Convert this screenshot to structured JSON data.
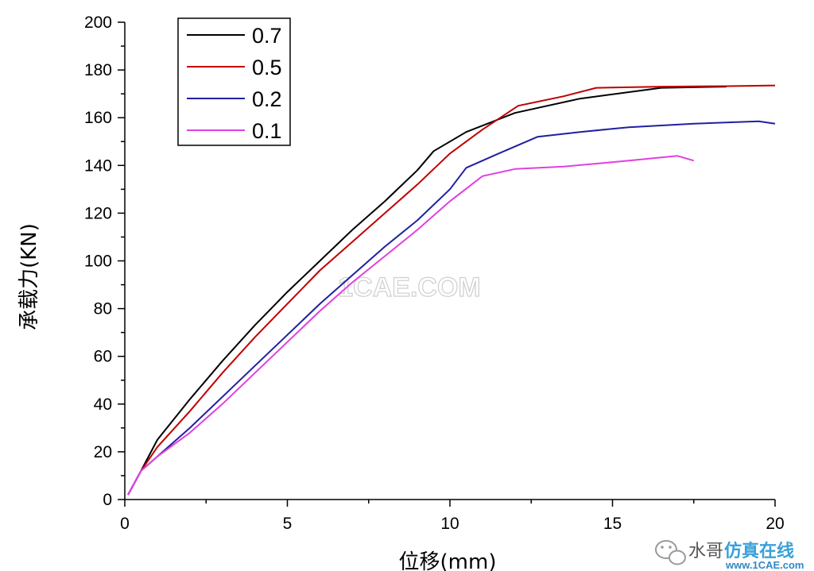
{
  "chart_data": {
    "type": "line",
    "title": "",
    "xlabel": "位移(mm)",
    "ylabel": "承载力(KN)",
    "xlim": [
      0,
      20
    ],
    "ylim": [
      0,
      200
    ],
    "xticks": [
      0,
      5,
      10,
      15,
      20
    ],
    "yticks": [
      0,
      20,
      40,
      60,
      80,
      100,
      120,
      140,
      160,
      180,
      200
    ],
    "grid": false,
    "legend_position": "top-left",
    "series": [
      {
        "name": "0.7",
        "color": "#000000",
        "x": [
          0.1,
          0.5,
          1.0,
          2.0,
          3.0,
          4.0,
          5.0,
          6.0,
          7.0,
          8.0,
          9.0,
          9.5,
          10.5,
          12.0,
          14.0,
          16.5,
          18.5
        ],
        "y": [
          2,
          12,
          25,
          42,
          58,
          73,
          87,
          100,
          113,
          125,
          138,
          146,
          154,
          162,
          168,
          172.5,
          173
        ]
      },
      {
        "name": "0.5",
        "color": "#c00000",
        "x": [
          0.1,
          0.5,
          1.0,
          2.0,
          3.0,
          4.0,
          5.0,
          6.0,
          7.0,
          8.0,
          9.0,
          10.0,
          11.0,
          12.1,
          13.5,
          14.5,
          16.5,
          18.5,
          20.0
        ],
        "y": [
          2,
          12,
          22,
          37,
          53,
          68,
          82,
          96,
          108,
          120,
          132,
          145,
          155,
          165,
          169,
          172.5,
          173,
          173.2,
          173.5
        ]
      },
      {
        "name": "0.2",
        "color": "#2020a0",
        "x": [
          0.1,
          0.5,
          1.0,
          2.0,
          3.0,
          4.0,
          5.0,
          6.0,
          7.0,
          8.0,
          9.0,
          10.0,
          10.5,
          11.5,
          12.7,
          14.0,
          15.5,
          17.5,
          19.5,
          20.0
        ],
        "y": [
          2,
          12,
          18,
          30,
          43,
          56,
          69,
          82,
          94,
          106,
          117,
          130,
          139,
          145,
          152,
          154,
          156,
          157.5,
          158.5,
          157.5
        ]
      },
      {
        "name": "0.1",
        "color": "#e040e0",
        "x": [
          0.1,
          0.5,
          1.0,
          2.0,
          3.0,
          4.0,
          5.0,
          6.0,
          7.0,
          8.0,
          9.0,
          10.0,
          11.0,
          12.0,
          13.5,
          15.5,
          17.0,
          17.5
        ],
        "y": [
          2,
          12,
          18,
          28,
          40,
          53,
          66,
          79,
          91,
          102,
          113,
          125,
          135.5,
          138.5,
          139.5,
          142,
          144,
          142
        ]
      }
    ]
  },
  "watermarks": {
    "center": "1CAE.COM",
    "corner_text": "水哥",
    "corner_logo": "仿真在线",
    "corner_site": "www.1CAE.com",
    "corner_icon": "wechat-icon"
  }
}
